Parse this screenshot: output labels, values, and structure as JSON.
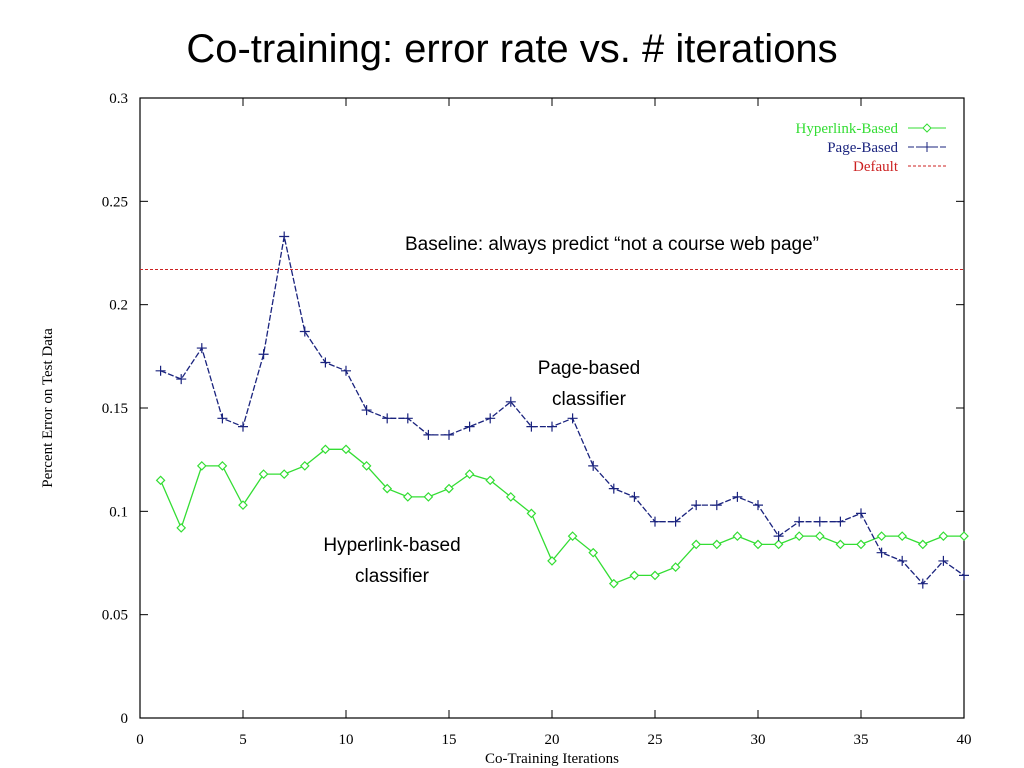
{
  "chart_data": {
    "type": "line",
    "title": "Co-training: error rate vs. # iterations",
    "xlabel": "Co-Training Iterations",
    "ylabel": "Percent Error on Test Data",
    "x": [
      1,
      2,
      3,
      4,
      5,
      6,
      7,
      8,
      9,
      10,
      11,
      12,
      13,
      14,
      15,
      16,
      17,
      18,
      19,
      20,
      21,
      22,
      23,
      24,
      25,
      26,
      27,
      28,
      29,
      30,
      31,
      32,
      33,
      34,
      35,
      36,
      37,
      38,
      39,
      40
    ],
    "series": [
      {
        "name": "Hyperlink-Based",
        "color": "#33dd33",
        "marker": "diamond",
        "values": [
          0.115,
          0.092,
          0.122,
          0.122,
          0.103,
          0.118,
          0.118,
          0.122,
          0.13,
          0.13,
          0.122,
          0.111,
          0.107,
          0.107,
          0.111,
          0.118,
          0.115,
          0.107,
          0.099,
          0.076,
          0.088,
          0.08,
          0.065,
          0.069,
          0.069,
          0.073,
          0.084,
          0.084,
          0.088,
          0.084,
          0.084,
          0.088,
          0.088,
          0.084,
          0.084,
          0.088,
          0.088,
          0.084,
          0.088,
          0.088
        ]
      },
      {
        "name": "Page-Based",
        "color": "#1a237e",
        "marker": "plus",
        "values": [
          0.168,
          0.164,
          0.179,
          0.145,
          0.141,
          0.176,
          0.233,
          0.187,
          0.172,
          0.168,
          0.149,
          0.145,
          0.145,
          0.137,
          0.137,
          0.141,
          0.145,
          0.153,
          0.141,
          0.141,
          0.145,
          0.122,
          0.111,
          0.107,
          0.095,
          0.095,
          0.103,
          0.103,
          0.107,
          0.103,
          0.088,
          0.095,
          0.095,
          0.095,
          0.099,
          0.08,
          0.076,
          0.065,
          0.076,
          0.069
        ]
      },
      {
        "name": "Default",
        "color": "#cc2222",
        "y": 0.217
      }
    ],
    "annotations": [
      "Baseline: always predict “not a course web page”",
      "Page-based",
      "classifier",
      "Hyperlink-based",
      "classifier"
    ],
    "xlim": [
      0,
      40
    ],
    "xticks": [
      0,
      5,
      10,
      15,
      20,
      25,
      30,
      35,
      40
    ],
    "ylim": [
      0,
      0.3
    ],
    "yticks": [
      0,
      0.05,
      0.1,
      0.15,
      0.2,
      0.25,
      0.3
    ],
    "legend": "upper right"
  }
}
